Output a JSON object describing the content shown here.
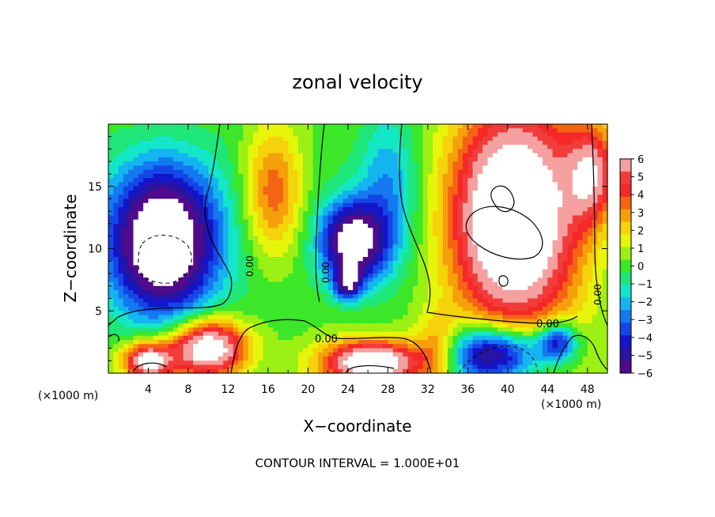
{
  "chart_data": {
    "type": "heatmap",
    "title": "zonal velocity",
    "xlabel": "X−coordinate",
    "ylabel": "Z−coordinate",
    "x_unit_left": "(×1000 m)",
    "x_unit_right": "(×1000 m)",
    "footer": "CONTOUR INTERVAL = 1.000E+01",
    "xlim": [
      0,
      50
    ],
    "ylim": [
      0,
      20
    ],
    "x_ticks": [
      "4",
      "8",
      "12",
      "16",
      "20",
      "24",
      "28",
      "32",
      "36",
      "40",
      "44",
      "48"
    ],
    "x_tick_values": [
      4,
      8,
      12,
      16,
      20,
      24,
      28,
      32,
      36,
      40,
      44,
      48
    ],
    "y_ticks": [
      "5",
      "10",
      "15"
    ],
    "y_tick_values": [
      5,
      10,
      15
    ],
    "colorbar": {
      "ticks": [
        "6",
        "5",
        "4",
        "3",
        "2",
        "1",
        "0",
        "−1",
        "−2",
        "−3",
        "−4",
        "−5",
        "−6"
      ],
      "tick_values": [
        6,
        5,
        4,
        3,
        2,
        1,
        0,
        -1,
        -2,
        -3,
        -4,
        -5,
        -6
      ],
      "colors": [
        "#f5a0a0",
        "#f23c3c",
        "#f52828",
        "#f56414",
        "#f5a00a",
        "#f5d20a",
        "#e6f50a",
        "#9bf014",
        "#3ce628",
        "#1ee678",
        "#14e6c8",
        "#14b4f0",
        "#1478f0",
        "#1446e6",
        "#1414c8",
        "#2814a0",
        "#500a8c"
      ]
    },
    "contour_labels": [
      "0.00",
      "0.00",
      "0.00",
      "0.00",
      "0.00"
    ],
    "blobs": [
      {
        "cx": 5.5,
        "cy": 10.5,
        "r": 5.2,
        "v": -9,
        "sy": 1.15
      },
      {
        "cx": 24.5,
        "cy": 10.5,
        "r": 3.2,
        "v": -7.5,
        "sy": 1.0
      },
      {
        "cx": 24.0,
        "cy": 7.2,
        "r": 1.3,
        "v": -5,
        "sy": 1.0
      },
      {
        "cx": 40.5,
        "cy": 12.5,
        "r": 6.5,
        "v": 10,
        "sy": 1.35
      },
      {
        "cx": 16.5,
        "cy": 14.5,
        "r": 3.0,
        "v": 4,
        "sy": 1.8
      },
      {
        "cx": 28.0,
        "cy": 15.0,
        "r": 3.0,
        "v": -2.5,
        "sy": 2.2
      },
      {
        "cx": 10.0,
        "cy": 2.0,
        "r": 3.8,
        "v": 8,
        "sy": 0.6
      },
      {
        "cx": 4.0,
        "cy": 1.0,
        "r": 2.5,
        "v": 7,
        "sy": 0.6
      },
      {
        "cx": 26.5,
        "cy": 0.8,
        "r": 5.0,
        "v": 8,
        "sy": 0.35
      },
      {
        "cx": 38.5,
        "cy": 1.5,
        "r": 5.0,
        "v": -7,
        "sy": 0.45
      },
      {
        "cx": 48.5,
        "cy": 16.0,
        "r": 2.5,
        "v": 5,
        "sy": 1.6
      },
      {
        "cx": 45.0,
        "cy": 2.5,
        "r": 2.0,
        "v": -5,
        "sy": 0.8
      },
      {
        "cx": 33.0,
        "cy": 2.0,
        "r": 2.2,
        "v": 3,
        "sy": 1.2
      }
    ]
  }
}
